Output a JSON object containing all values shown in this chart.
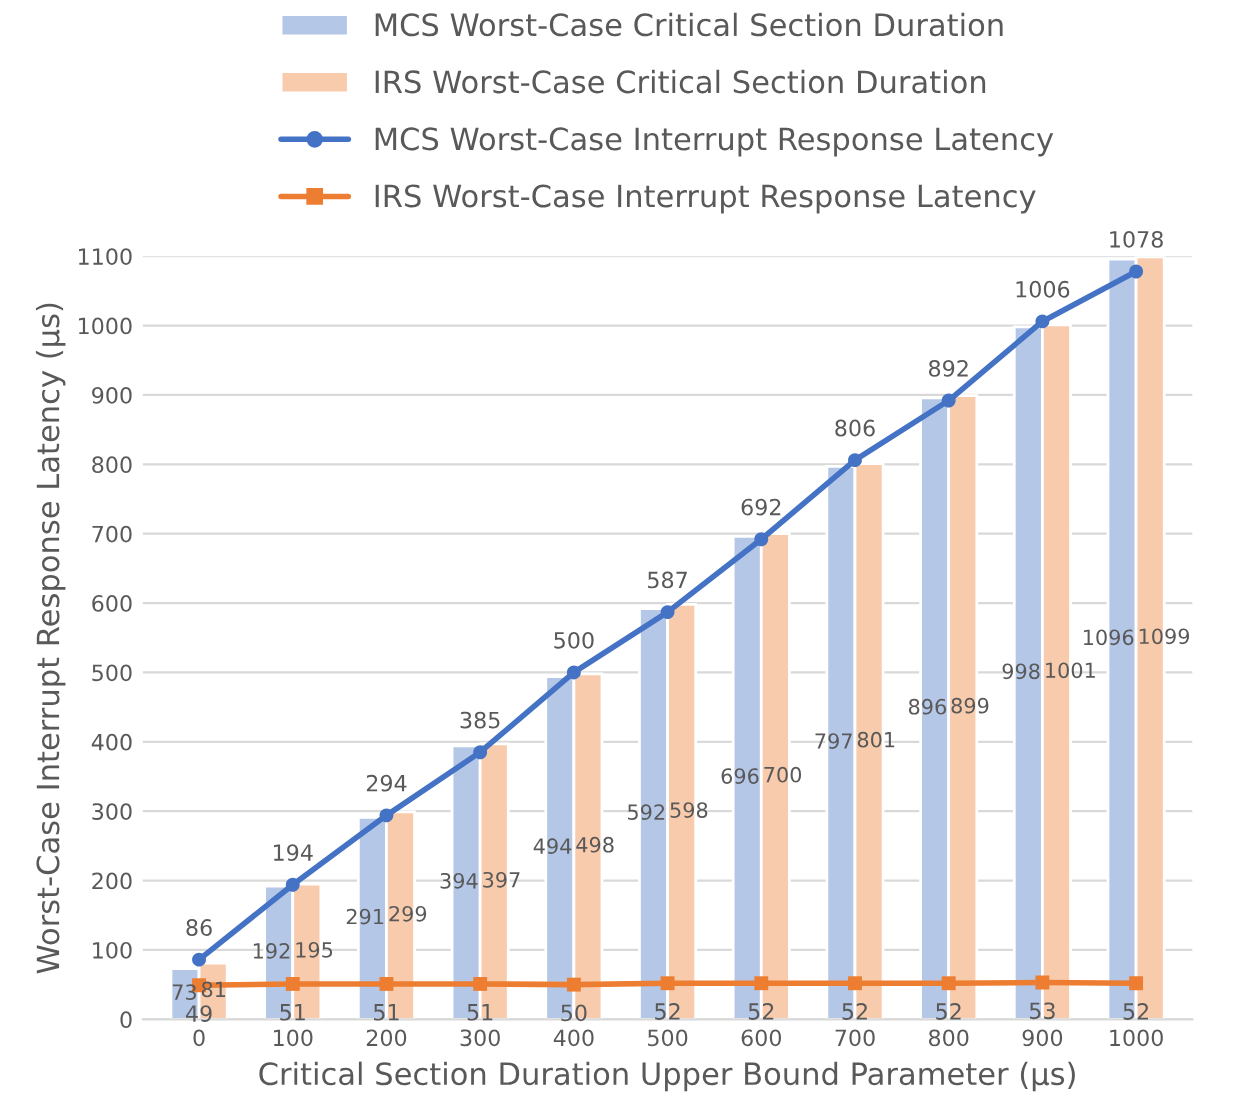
{
  "chart_data": {
    "type": "bar",
    "xlabel": "Critical Section Duration Upper Bound Parameter (µs)",
    "ylabel": "Worst-Case Interrupt Response Latency (µs)",
    "categories": [
      "0",
      "100",
      "200",
      "300",
      "400",
      "500",
      "600",
      "700",
      "800",
      "900",
      "1000"
    ],
    "series": [
      {
        "name": "MCS Worst-Case Critical Section Duration",
        "color": "#b4c7e7",
        "values": [
          73,
          192,
          291,
          394,
          494,
          592,
          696,
          797,
          896,
          998,
          1096
        ]
      },
      {
        "name": "IRS Worst-Case Critical Section Duration",
        "color": "#f8cbad",
        "values": [
          81,
          195,
          299,
          397,
          498,
          598,
          700,
          801,
          899,
          1001,
          1099
        ]
      },
      {
        "name": "MCS Worst-Case Interrupt Response Latency",
        "type": "line",
        "color": "#4472c4",
        "marker": "circle",
        "values": [
          86,
          194,
          294,
          385,
          500,
          587,
          692,
          806,
          892,
          1006,
          1078
        ]
      },
      {
        "name": "IRS Worst-Case Interrupt Response Latency",
        "type": "line",
        "color": "#ed7d31",
        "marker": "square",
        "values": [
          49,
          51,
          51,
          51,
          50,
          52,
          52,
          52,
          52,
          53,
          52
        ]
      }
    ],
    "ylim": [
      0,
      1100
    ],
    "yticks": [
      0,
      100,
      200,
      300,
      400,
      500,
      600,
      700,
      800,
      900,
      1000,
      1100
    ],
    "grid": "y",
    "legend": "top",
    "data_labels": true
  }
}
